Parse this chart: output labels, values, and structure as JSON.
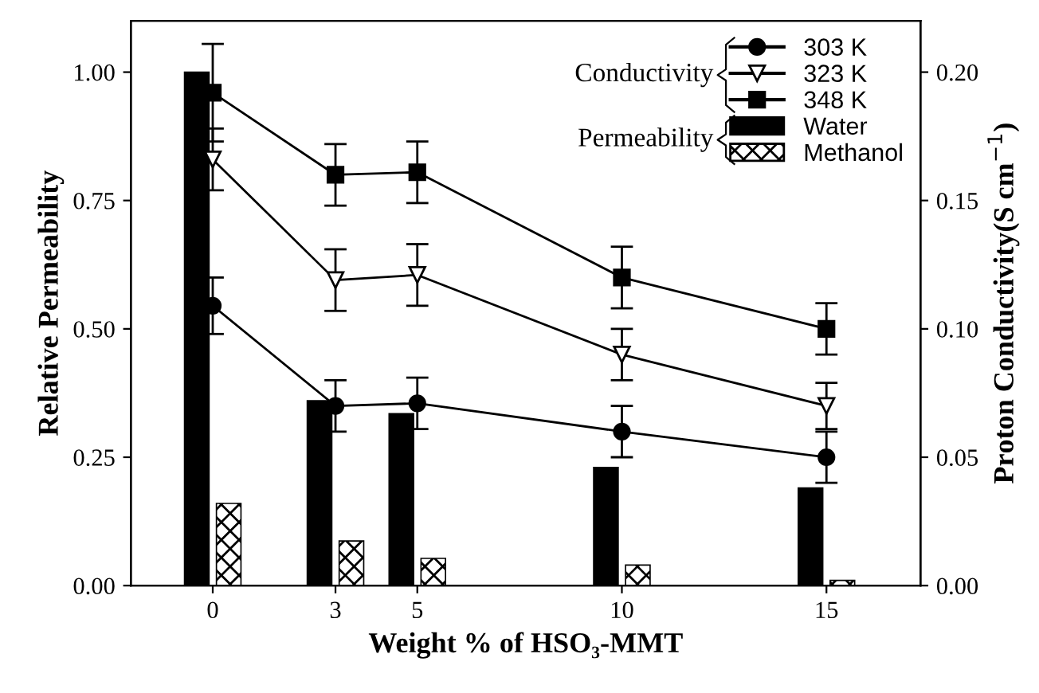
{
  "chart_data": {
    "type": "bar",
    "xlabel": "Weight % of HSO₃-MMT",
    "ylabel": "Relative Permeability",
    "y2label": "Proton Conductivity(S cm$^{−1}$)",
    "x": [
      0,
      3,
      5,
      10,
      15
    ],
    "xlim": [
      -2,
      17.3
    ],
    "xticks": [
      0,
      3,
      5,
      10,
      15
    ],
    "ylim": [
      0,
      1.1
    ],
    "yticks": [
      {
        "value": 0,
        "label": "0.00"
      },
      {
        "value": 0.25,
        "label": "0.25"
      },
      {
        "value": 0.5,
        "label": "0.50"
      },
      {
        "value": 0.75,
        "label": "0.75"
      },
      {
        "value": 1.0,
        "label": "1.00"
      }
    ],
    "y2lim": [
      0,
      0.22
    ],
    "y2ticks": [
      {
        "value": 0,
        "label": "0.00"
      },
      {
        "value": 0.05,
        "label": "0.05"
      },
      {
        "value": 0.1,
        "label": "0.10"
      },
      {
        "value": 0.15,
        "label": "0.15"
      },
      {
        "value": 0.2,
        "label": "0.20"
      }
    ],
    "series": [
      {
        "name": "303 K",
        "type": "line",
        "axis": "y2",
        "color": "#000000",
        "marker": "circle",
        "values": [
          0.109,
          0.07,
          0.071,
          0.06,
          0.05
        ],
        "errors": [
          0.011,
          0.01,
          0.01,
          0.01,
          0.01
        ]
      },
      {
        "name": "323 K",
        "type": "line",
        "axis": "y2",
        "color": "#000000",
        "marker": "triangle",
        "values": [
          0.166,
          0.119,
          0.121,
          0.09,
          0.07
        ],
        "errors": [
          0.012,
          0.012,
          0.012,
          0.01,
          0.009
        ]
      },
      {
        "name": "348 K",
        "type": "line",
        "axis": "y2",
        "color": "#000000",
        "marker": "square",
        "values": [
          0.192,
          0.16,
          0.161,
          0.12,
          0.1
        ],
        "errors": [
          0.019,
          0.012,
          0.012,
          0.012,
          0.01
        ]
      },
      {
        "name": "Water",
        "color": "#000000",
        "values": [
          1.0,
          0.36,
          0.335,
          0.23,
          0.19
        ]
      },
      {
        "name": "Methanol",
        "color": "#000000",
        "values": [
          0.16,
          0.087,
          0.053,
          0.04,
          0.01
        ]
      }
    ],
    "annotations": [
      "Conductivity",
      "Permeability"
    ],
    "legend": "top right",
    "grid": false
  }
}
